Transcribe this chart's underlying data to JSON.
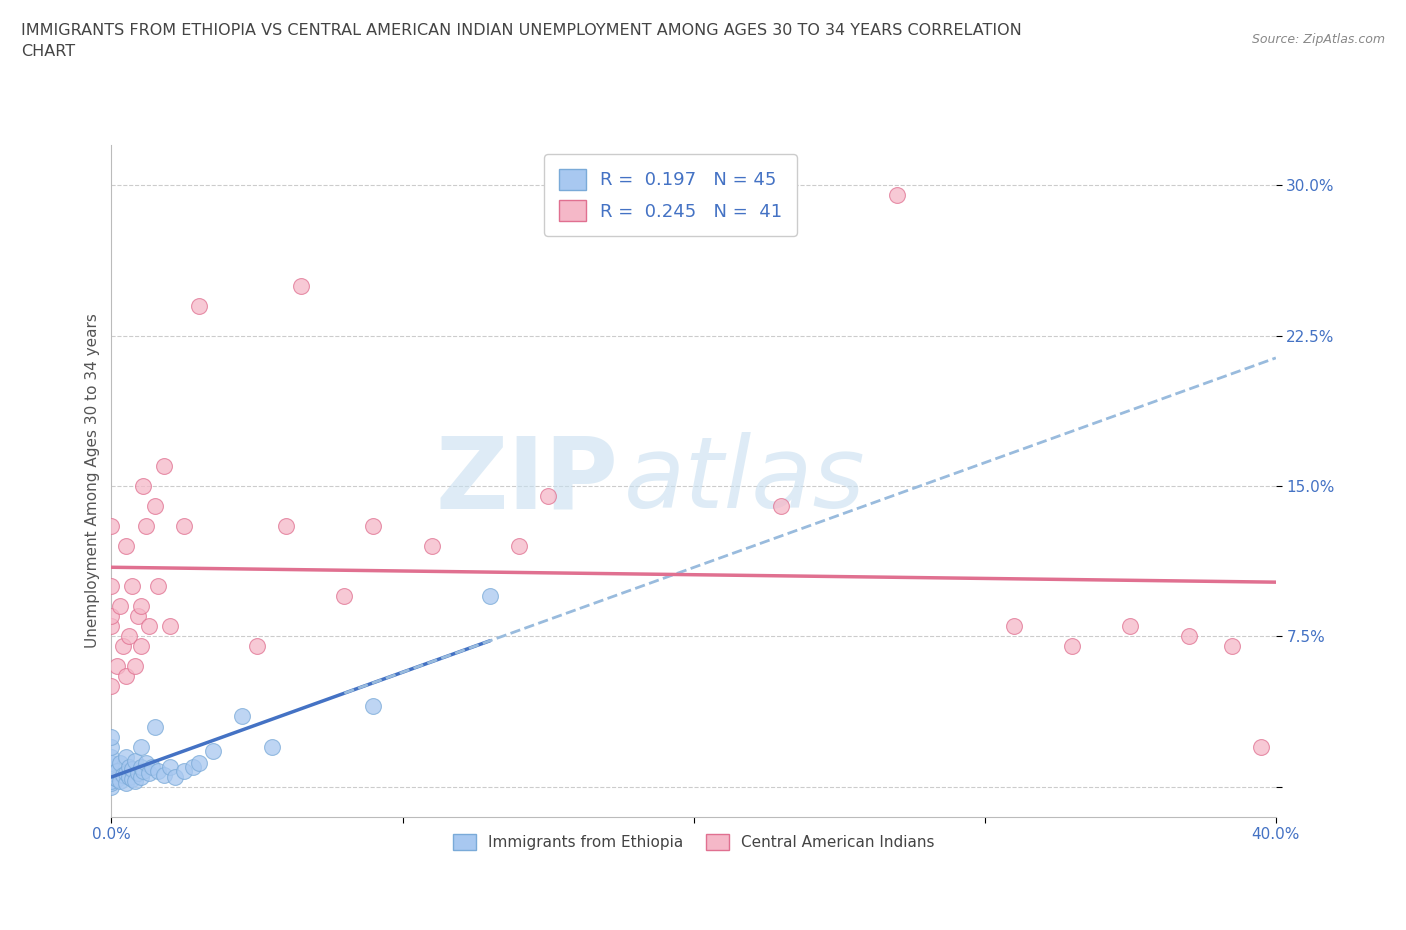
{
  "title": "IMMIGRANTS FROM ETHIOPIA VS CENTRAL AMERICAN INDIAN UNEMPLOYMENT AMONG AGES 30 TO 34 YEARS CORRELATION\nCHART",
  "source": "Source: ZipAtlas.com",
  "ylabel": "Unemployment Among Ages 30 to 34 years",
  "xlim": [
    0.0,
    0.4
  ],
  "ylim": [
    -0.015,
    0.32
  ],
  "grid_color": "#cccccc",
  "watermark_text": "ZIP",
  "watermark_text2": "atlas",
  "ethiopia_color": "#a8c8f0",
  "ethiopia_edge": "#7aaad8",
  "ca_indian_color": "#f5b8c8",
  "ca_indian_edge": "#e07090",
  "ethiopia_R": 0.197,
  "ethiopia_N": 45,
  "ca_indian_R": 0.245,
  "ca_indian_N": 41,
  "ethiopia_line_color": "#4472c4",
  "ca_indian_line_color": "#e07090",
  "dashed_line_color": "#99bbdd",
  "ethiopia_x": [
    0.0,
    0.0,
    0.0,
    0.0,
    0.0,
    0.0,
    0.0,
    0.0,
    0.0,
    0.0,
    0.002,
    0.002,
    0.003,
    0.003,
    0.004,
    0.005,
    0.005,
    0.005,
    0.006,
    0.006,
    0.007,
    0.007,
    0.008,
    0.008,
    0.009,
    0.01,
    0.01,
    0.01,
    0.011,
    0.012,
    0.013,
    0.014,
    0.015,
    0.016,
    0.018,
    0.02,
    0.022,
    0.025,
    0.028,
    0.03,
    0.035,
    0.045,
    0.055,
    0.09,
    0.13
  ],
  "ethiopia_y": [
    0.0,
    0.002,
    0.003,
    0.005,
    0.007,
    0.01,
    0.012,
    0.015,
    0.02,
    0.025,
    0.004,
    0.008,
    0.003,
    0.012,
    0.006,
    0.002,
    0.007,
    0.015,
    0.005,
    0.01,
    0.004,
    0.009,
    0.003,
    0.013,
    0.007,
    0.005,
    0.01,
    0.02,
    0.008,
    0.012,
    0.007,
    0.01,
    0.03,
    0.008,
    0.006,
    0.01,
    0.005,
    0.008,
    0.01,
    0.012,
    0.018,
    0.035,
    0.02,
    0.04,
    0.095
  ],
  "ca_indian_x": [
    0.0,
    0.0,
    0.0,
    0.0,
    0.0,
    0.002,
    0.003,
    0.004,
    0.005,
    0.005,
    0.006,
    0.007,
    0.008,
    0.009,
    0.01,
    0.01,
    0.011,
    0.012,
    0.013,
    0.015,
    0.016,
    0.018,
    0.02,
    0.025,
    0.03,
    0.05,
    0.06,
    0.065,
    0.08,
    0.09,
    0.11,
    0.14,
    0.15,
    0.23,
    0.27,
    0.31,
    0.33,
    0.35,
    0.37,
    0.385,
    0.395
  ],
  "ca_indian_y": [
    0.05,
    0.08,
    0.1,
    0.13,
    0.085,
    0.06,
    0.09,
    0.07,
    0.055,
    0.12,
    0.075,
    0.1,
    0.06,
    0.085,
    0.07,
    0.09,
    0.15,
    0.13,
    0.08,
    0.14,
    0.1,
    0.16,
    0.08,
    0.13,
    0.24,
    0.07,
    0.13,
    0.25,
    0.095,
    0.13,
    0.12,
    0.12,
    0.145,
    0.14,
    0.295,
    0.08,
    0.07,
    0.08,
    0.075,
    0.07,
    0.02
  ],
  "legend_ethiopia_label": "Immigrants from Ethiopia",
  "legend_ca_label": "Central American Indians",
  "background_color": "#ffffff",
  "title_color": "#444444",
  "axis_label_color": "#555555",
  "tick_label_color": "#4472c4"
}
